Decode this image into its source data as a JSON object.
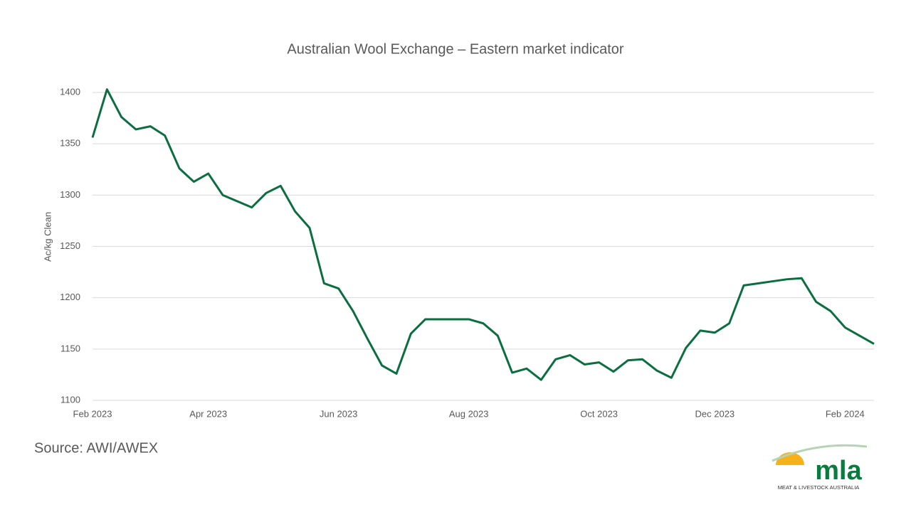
{
  "chart_data": {
    "type": "line",
    "title": "Australian Wool Exchange – Eastern market indicator",
    "y_label": "Ac/kg Clean",
    "categories": [
      "Feb 2023",
      null,
      null,
      null,
      null,
      null,
      null,
      null,
      "Apr 2023",
      null,
      null,
      null,
      null,
      null,
      null,
      null,
      null,
      "Jun 2023",
      null,
      null,
      null,
      null,
      null,
      null,
      null,
      null,
      "Aug 2023",
      null,
      null,
      null,
      null,
      null,
      null,
      null,
      null,
      "Oct 2023",
      null,
      null,
      null,
      null,
      null,
      null,
      null,
      "Dec 2023",
      null,
      null,
      null,
      null,
      null,
      null,
      null,
      null,
      "Feb 2024",
      null,
      null
    ],
    "series": [
      {
        "name": "Eastern market indicator",
        "color": "#0b6e3f",
        "values": [
          1356,
          1403,
          1376,
          1364,
          1367,
          1358,
          1326,
          1313,
          1321,
          1300,
          1294,
          1288,
          1302,
          1309,
          1284,
          1268,
          1214,
          1209,
          1187,
          1160,
          1134,
          1126,
          1165,
          1179,
          1179,
          1179,
          1179,
          1175,
          1163,
          1127,
          1131,
          1120,
          1140,
          1144,
          1135,
          1137,
          1128,
          1139,
          1140,
          1129,
          1122,
          1151,
          1168,
          1166,
          1175,
          1212,
          1214,
          1216,
          1218,
          1219,
          1196,
          1187,
          1171,
          1163,
          1155
        ]
      }
    ],
    "ylim": [
      1100,
      1400
    ],
    "yticks": [
      1100,
      1150,
      1200,
      1250,
      1300,
      1350,
      1400
    ],
    "grid": true
  },
  "source": "Source: AWI/AWEX",
  "logo": {
    "text": "mla",
    "subtext": "MEAT & LIVESTOCK AUSTRALIA"
  }
}
